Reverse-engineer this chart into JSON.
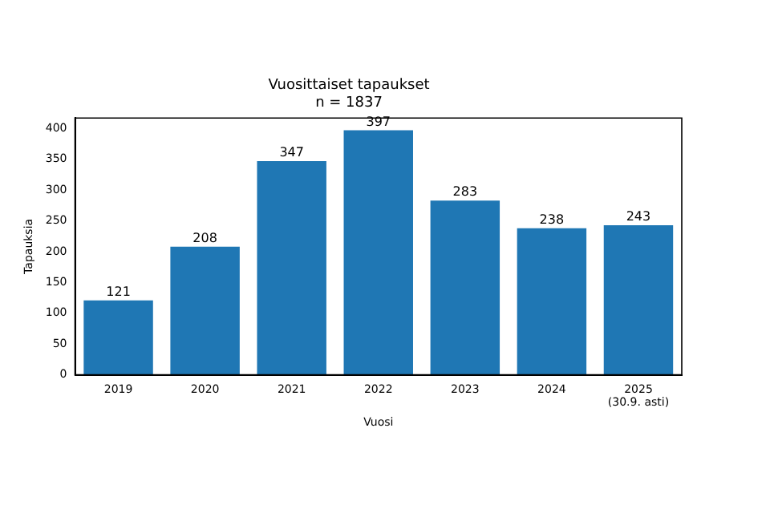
{
  "chart_data": {
    "type": "bar",
    "title": "Vuosittaiset tapaukset",
    "subtitle": "n = 1837",
    "xlabel": "Vuosi",
    "ylabel": "Tapauksia",
    "categories": [
      "2019",
      "2020",
      "2021",
      "2022",
      "2023",
      "2024",
      "2025\n(30.9. asti)"
    ],
    "values": [
      121,
      208,
      347,
      397,
      283,
      238,
      243
    ],
    "color": "#1f77b4",
    "ylim": [
      0,
      417
    ],
    "yticks": [
      0,
      50,
      100,
      150,
      200,
      250,
      300,
      350,
      400
    ],
    "grid": false,
    "legend": false,
    "data_labels": true
  }
}
